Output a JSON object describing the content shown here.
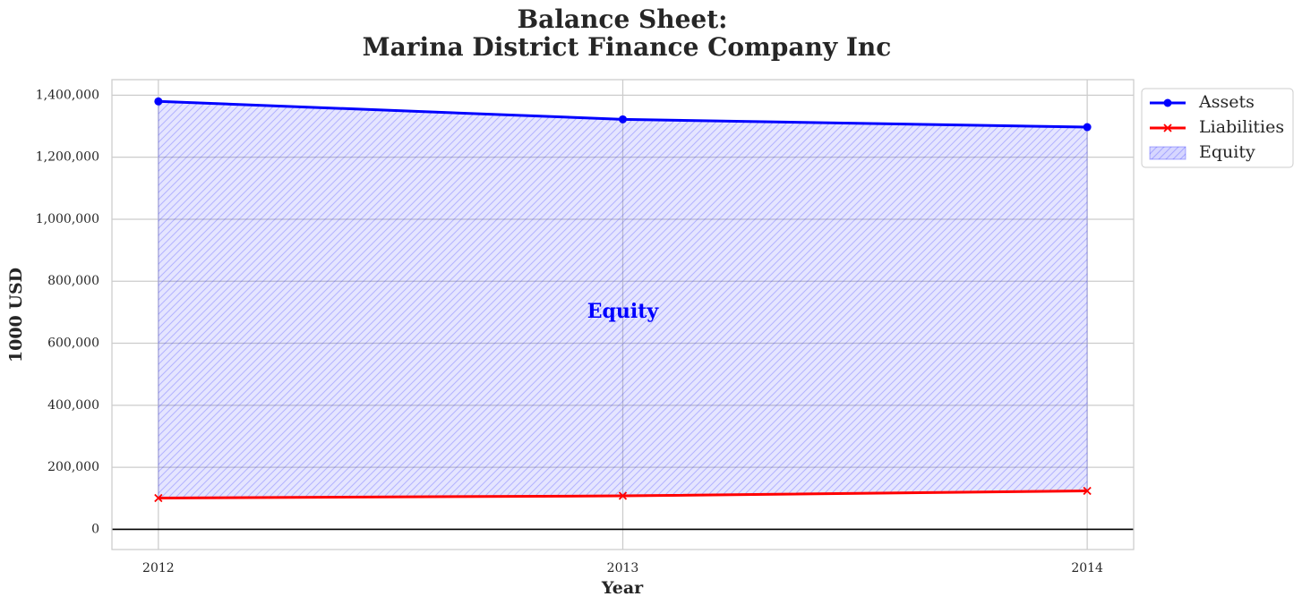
{
  "chart_data": {
    "type": "area",
    "title_line1": "Balance Sheet:",
    "title_line2": "Marina District Finance Company Inc",
    "xlabel": "Year",
    "ylabel": "1000 USD",
    "x": [
      2012,
      2013,
      2014
    ],
    "x_tick_labels": [
      "2012",
      "2013",
      "2014"
    ],
    "xlim": [
      2011.9,
      2014.1
    ],
    "ylim": [
      -65000,
      1450000
    ],
    "y_ticks": [
      0,
      200000,
      400000,
      600000,
      800000,
      1000000,
      1200000,
      1400000
    ],
    "y_tick_labels": [
      "0",
      "200,000",
      "400,000",
      "600,000",
      "800,000",
      "1,000,000",
      "1,200,000",
      "1,400,000"
    ],
    "grid": true,
    "legend_position": "outside top-right",
    "series": [
      {
        "name": "Assets",
        "values": [
          1380000,
          1322000,
          1297000
        ],
        "color": "#0000ff",
        "marker": "circle"
      },
      {
        "name": "Liabilities",
        "values": [
          101000,
          108000,
          124000
        ],
        "color": "#ff0000",
        "marker": "x"
      }
    ],
    "fill": {
      "name": "Equity",
      "between": [
        "Assets",
        "Liabilities"
      ],
      "color": "#0000ff",
      "opacity": 0.1,
      "hatch": "////"
    },
    "annotation": {
      "text": "Equity",
      "x": 2013,
      "y": 700000,
      "color": "#0000ff"
    },
    "zero_line_color": "#000000"
  }
}
